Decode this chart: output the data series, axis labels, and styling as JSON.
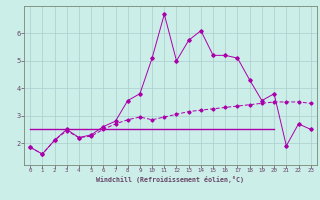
{
  "xlabel": "Windchill (Refroidissement éolien,°C)",
  "background_color": "#cceee8",
  "line_color": "#aa00aa",
  "grid_color": "#aacccc",
  "axis_color": "#664466",
  "x_ticks": [
    0,
    1,
    2,
    3,
    4,
    5,
    6,
    7,
    8,
    9,
    10,
    11,
    12,
    13,
    14,
    15,
    16,
    17,
    18,
    19,
    20,
    21,
    22,
    23
  ],
  "y_ticks": [
    2,
    3,
    4,
    5,
    6
  ],
  "ylim": [
    1.2,
    7.0
  ],
  "xlim": [
    -0.5,
    23.5
  ],
  "series1_x": [
    0,
    1,
    2,
    3,
    4,
    5,
    6,
    7,
    8,
    9,
    10,
    11,
    12,
    13,
    14,
    15,
    16,
    17,
    18,
    19,
    20,
    21,
    22,
    23
  ],
  "series1_y": [
    1.85,
    1.6,
    2.1,
    2.5,
    2.2,
    2.3,
    2.6,
    2.8,
    3.55,
    3.8,
    5.1,
    6.7,
    5.0,
    5.75,
    6.1,
    5.2,
    5.2,
    5.1,
    4.3,
    3.55,
    3.8,
    1.9,
    2.7,
    2.5
  ],
  "series2_x": [
    0,
    1,
    2,
    3,
    4,
    5,
    6,
    7,
    8,
    9,
    10,
    11,
    12,
    13,
    14,
    15,
    16,
    17,
    18,
    19,
    20,
    21,
    22,
    23
  ],
  "series2_y": [
    1.85,
    1.6,
    2.1,
    2.45,
    2.2,
    2.25,
    2.5,
    2.7,
    2.85,
    2.95,
    2.85,
    2.95,
    3.05,
    3.15,
    3.2,
    3.25,
    3.3,
    3.35,
    3.4,
    3.45,
    3.5,
    3.5,
    3.5,
    3.45
  ],
  "series3_x": [
    0,
    20
  ],
  "series3_y": [
    2.5,
    2.5
  ]
}
